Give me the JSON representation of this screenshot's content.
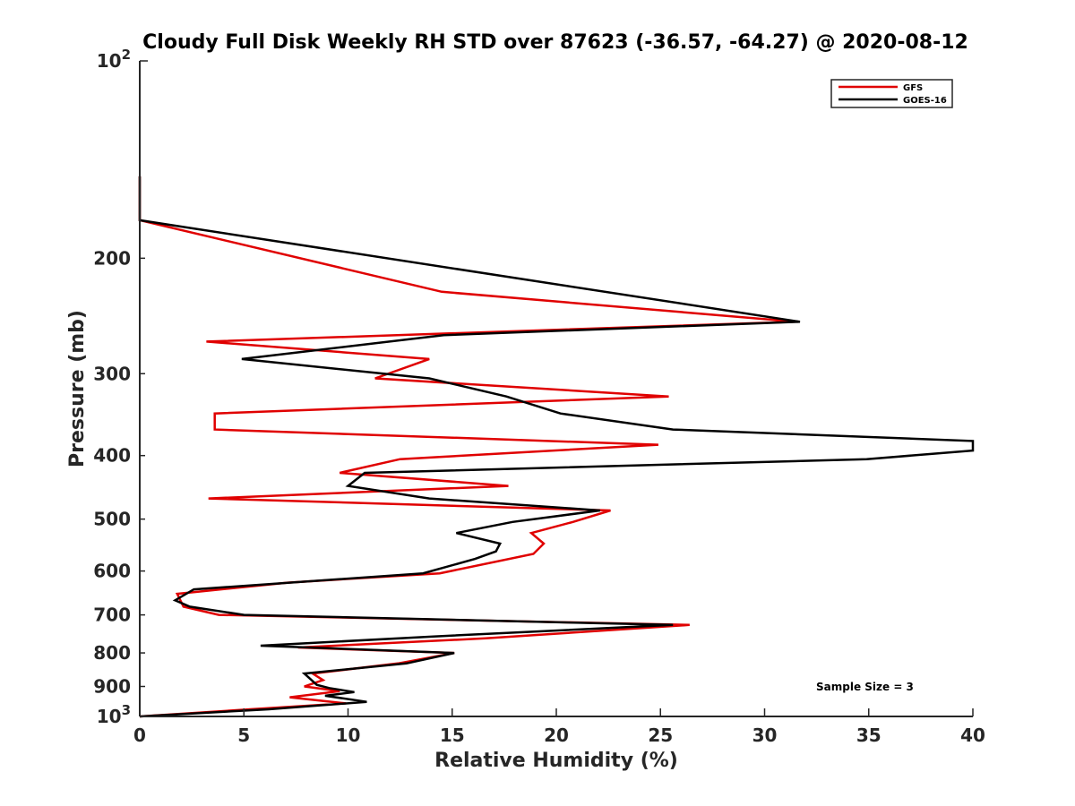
{
  "chart_data": {
    "type": "line",
    "title": "Cloudy Full Disk Weekly RH STD over 87623 (-36.57, -64.27) @ 2020-08-12",
    "xlabel": "Relative Humidity (%)",
    "ylabel": "Pressure (mb)",
    "xlim": [
      0,
      40
    ],
    "ylim": [
      100,
      1000
    ],
    "yscale": "log",
    "yreversed": true,
    "x_ticks": [
      "0",
      "5",
      "10",
      "15",
      "20",
      "25",
      "30",
      "35",
      "40"
    ],
    "y_ticks": [
      {
        "value": 100,
        "base": "10",
        "exp": "2"
      },
      {
        "value": 200,
        "label": "200"
      },
      {
        "value": 300,
        "label": "300"
      },
      {
        "value": 400,
        "label": "400"
      },
      {
        "value": 500,
        "label": "500"
      },
      {
        "value": 600,
        "label": "600"
      },
      {
        "value": 700,
        "label": "700"
      },
      {
        "value": 800,
        "label": "800"
      },
      {
        "value": 900,
        "label": "900"
      },
      {
        "value": 1000,
        "base": "10",
        "exp": "3"
      }
    ],
    "legend_position": "top-right",
    "annotation": "Sample Size = 3",
    "series": [
      {
        "name": "GFS",
        "color": "#e00000",
        "points": [
          [
            0,
            150
          ],
          [
            0,
            175
          ],
          [
            14.5,
            225
          ],
          [
            31.5,
            250
          ],
          [
            3.2,
            268
          ],
          [
            13.9,
            285
          ],
          [
            11.3,
            305
          ],
          [
            25.4,
            325
          ],
          [
            3.6,
            345
          ],
          [
            3.6,
            365
          ],
          [
            24.9,
            385
          ],
          [
            12.5,
            405
          ],
          [
            9.6,
            425
          ],
          [
            17.7,
            445
          ],
          [
            3.3,
            465
          ],
          [
            22.6,
            485
          ],
          [
            20.8,
            505
          ],
          [
            18.8,
            525
          ],
          [
            19.4,
            545
          ],
          [
            18.9,
            565
          ],
          [
            14.4,
            605
          ],
          [
            7.1,
            625
          ],
          [
            1.8,
            650
          ],
          [
            2.1,
            680
          ],
          [
            3.8,
            700
          ],
          [
            26.4,
            725
          ],
          [
            16.6,
            760
          ],
          [
            7.6,
            785
          ],
          [
            15.1,
            800
          ],
          [
            12.4,
            830
          ],
          [
            8.3,
            860
          ],
          [
            8.8,
            880
          ],
          [
            7.9,
            900
          ],
          [
            9.6,
            915
          ],
          [
            7.2,
            935
          ],
          [
            9.9,
            955
          ],
          [
            5.3,
            975
          ],
          [
            0,
            1000
          ]
        ]
      },
      {
        "name": "GOES-16",
        "color": "#000000",
        "points": [
          [
            0,
            150
          ],
          [
            0,
            175
          ],
          [
            31.7,
            250
          ],
          [
            14.6,
            262
          ],
          [
            4.9,
            285
          ],
          [
            13.9,
            305
          ],
          [
            17.6,
            325
          ],
          [
            20.2,
            345
          ],
          [
            25.6,
            365
          ],
          [
            40,
            380
          ],
          [
            40,
            393
          ],
          [
            34.9,
            405
          ],
          [
            10.8,
            425
          ],
          [
            10.0,
            445
          ],
          [
            13.9,
            465
          ],
          [
            22.1,
            485
          ],
          [
            17.9,
            505
          ],
          [
            15.2,
            525
          ],
          [
            17.3,
            545
          ],
          [
            17.1,
            560
          ],
          [
            16.1,
            575
          ],
          [
            13.6,
            605
          ],
          [
            2.6,
            640
          ],
          [
            1.7,
            665
          ],
          [
            2.4,
            680
          ],
          [
            5.0,
            700
          ],
          [
            25.6,
            725
          ],
          [
            14.1,
            755
          ],
          [
            5.8,
            780
          ],
          [
            15.1,
            800
          ],
          [
            12.8,
            830
          ],
          [
            7.9,
            860
          ],
          [
            8.5,
            895
          ],
          [
            9.1,
            905
          ],
          [
            10.3,
            918
          ],
          [
            8.9,
            930
          ],
          [
            10.9,
            950
          ],
          [
            6.2,
            975
          ],
          [
            0,
            1000
          ]
        ]
      }
    ]
  }
}
